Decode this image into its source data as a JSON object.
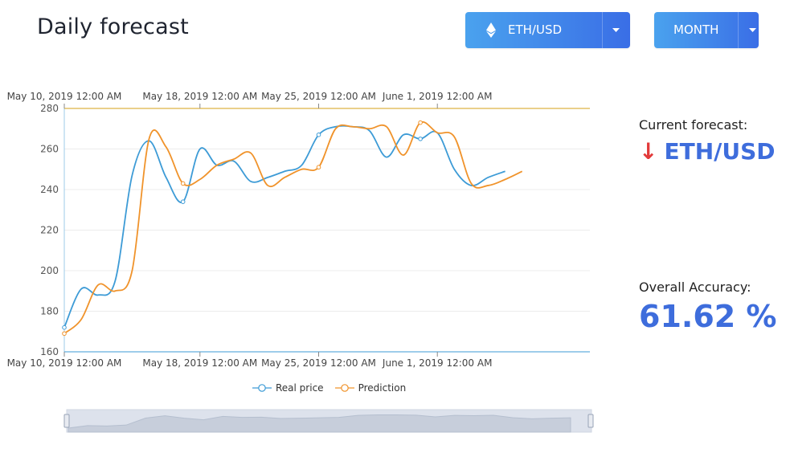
{
  "header": {
    "title": "Daily forecast"
  },
  "controls": {
    "pair": {
      "label": "ETH/USD",
      "icon": "ethereum-icon"
    },
    "period": {
      "label": "MONTH"
    }
  },
  "colors": {
    "real": "#3d9bd6",
    "prediction": "#f0932b",
    "axis": "#3d9bd6",
    "top_axis": "#d4a017",
    "arrow_down": "#e23a3a",
    "value_blue": "#3e6ddc"
  },
  "forecast": {
    "label": "Current forecast:",
    "direction": "down",
    "direction_icon": "arrow-down-icon",
    "pair": "ETH/USD"
  },
  "accuracy": {
    "label": "Overall Accuracy:",
    "value": "61.62 %"
  },
  "chart_data": {
    "type": "line",
    "title": "",
    "xlabel": "",
    "ylabel": "",
    "x_ticks": [
      "May 10, 2019 12:00 AM",
      "May 18, 2019 12:00 AM",
      "May 25, 2019 12:00 AM",
      "June 1, 2019 12:00 AM"
    ],
    "ylim": [
      160,
      280
    ],
    "y_ticks": [
      160,
      180,
      200,
      220,
      240,
      260,
      280
    ],
    "legend": "bottom-center",
    "grid": true,
    "series": [
      {
        "name": "Real price",
        "color": "#3d9bd6",
        "values": [
          [
            "2019-05-10",
            172
          ],
          [
            "2019-05-11",
            191
          ],
          [
            "2019-05-12",
            188
          ],
          [
            "2019-05-13",
            195
          ],
          [
            "2019-05-14",
            247
          ],
          [
            "2019-05-15",
            264
          ],
          [
            "2019-05-16",
            246
          ],
          [
            "2019-05-17",
            234
          ],
          [
            "2019-05-18",
            260
          ],
          [
            "2019-05-19",
            252
          ],
          [
            "2019-05-20",
            254
          ],
          [
            "2019-05-21",
            244
          ],
          [
            "2019-05-22",
            246
          ],
          [
            "2019-05-23",
            249
          ],
          [
            "2019-05-24",
            252
          ],
          [
            "2019-05-25",
            267
          ],
          [
            "2019-05-26",
            271
          ],
          [
            "2019-05-27",
            271
          ],
          [
            "2019-05-28",
            269
          ],
          [
            "2019-05-29",
            256
          ],
          [
            "2019-05-30",
            267
          ],
          [
            "2019-05-31",
            265
          ],
          [
            "2019-06-01",
            268
          ],
          [
            "2019-06-02",
            250
          ],
          [
            "2019-06-03",
            242
          ],
          [
            "2019-06-04",
            246
          ],
          [
            "2019-06-05",
            249
          ]
        ]
      },
      {
        "name": "Prediction",
        "color": "#f0932b",
        "values": [
          [
            "2019-05-10",
            169
          ],
          [
            "2019-05-11",
            176
          ],
          [
            "2019-05-12",
            193
          ],
          [
            "2019-05-13",
            190
          ],
          [
            "2019-05-14",
            200
          ],
          [
            "2019-05-15",
            265
          ],
          [
            "2019-05-16",
            261
          ],
          [
            "2019-05-17",
            243
          ],
          [
            "2019-05-18",
            245
          ],
          [
            "2019-05-19",
            252
          ],
          [
            "2019-05-20",
            255
          ],
          [
            "2019-05-21",
            258
          ],
          [
            "2019-05-22",
            242
          ],
          [
            "2019-05-23",
            246
          ],
          [
            "2019-05-24",
            250
          ],
          [
            "2019-05-25",
            251
          ],
          [
            "2019-05-26",
            270
          ],
          [
            "2019-05-27",
            271
          ],
          [
            "2019-05-28",
            270
          ],
          [
            "2019-05-29",
            271
          ],
          [
            "2019-05-30",
            257
          ],
          [
            "2019-05-31",
            273
          ],
          [
            "2019-06-01",
            268
          ],
          [
            "2019-06-02",
            266
          ],
          [
            "2019-06-03",
            243
          ],
          [
            "2019-06-04",
            242
          ],
          [
            "2019-06-05",
            245
          ],
          [
            "2019-06-06",
            249
          ]
        ]
      }
    ]
  }
}
